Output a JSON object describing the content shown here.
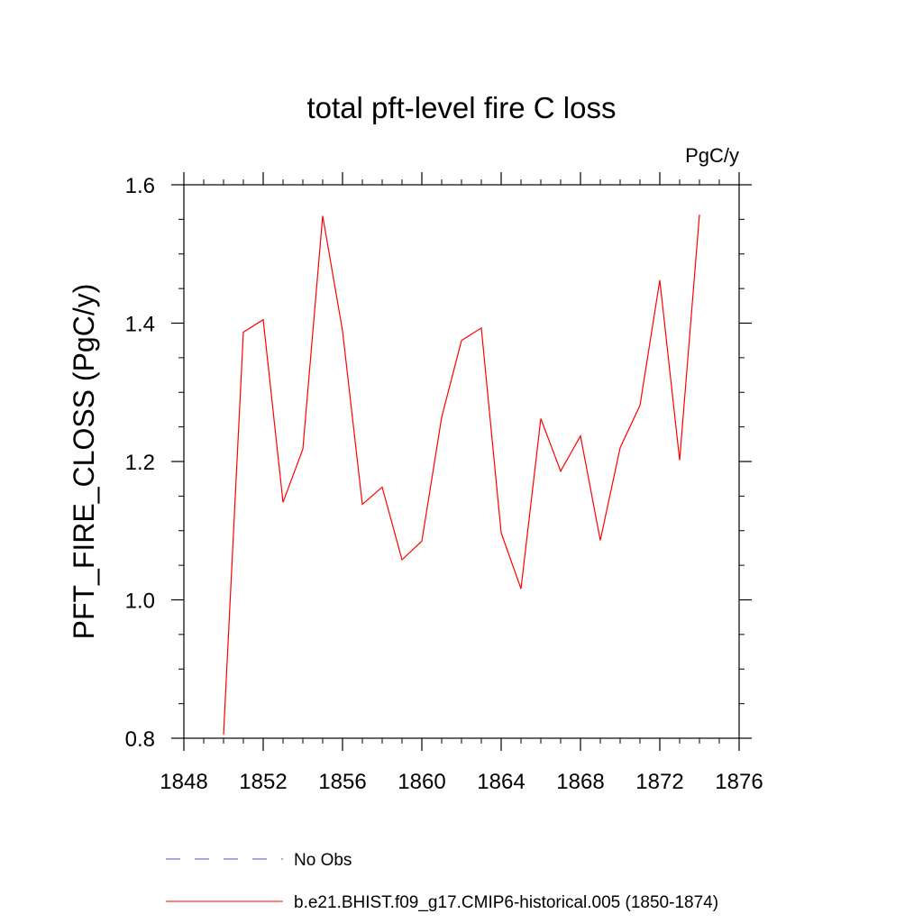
{
  "chart_data": {
    "type": "line",
    "title": "total pft-level fire C loss",
    "units_label": "PgC/y",
    "xlabel": "",
    "ylabel": "PFT_FIRE_CLOSS  (PgC/y)",
    "xlim": [
      1848,
      1876
    ],
    "ylim": [
      0.8,
      1.6
    ],
    "x_ticks": [
      1848,
      1852,
      1856,
      1860,
      1864,
      1868,
      1872,
      1876
    ],
    "x_tick_labels": [
      "1848",
      "1852",
      "1856",
      "1860",
      "1864",
      "1868",
      "1872",
      "1876"
    ],
    "y_ticks": [
      0.8,
      1.0,
      1.2,
      1.4,
      1.6
    ],
    "y_tick_labels": [
      "0.8",
      "1.0",
      "1.2",
      "1.4",
      "1.6"
    ],
    "grid": false,
    "legend_position": "bottom",
    "series": [
      {
        "name": "b.e21.BHIST.f09_g17.CMIP6-historical.005 (1850-1874)",
        "color": "#ff0000",
        "dash": "solid",
        "x": [
          1850,
          1851,
          1852,
          1853,
          1854,
          1855,
          1856,
          1857,
          1858,
          1859,
          1860,
          1861,
          1862,
          1863,
          1864,
          1865,
          1866,
          1867,
          1868,
          1869,
          1870,
          1871,
          1872,
          1873,
          1874
        ],
        "y": [
          0.805,
          1.387,
          1.405,
          1.141,
          1.218,
          1.555,
          1.389,
          1.138,
          1.163,
          1.058,
          1.085,
          1.264,
          1.375,
          1.393,
          1.097,
          1.016,
          1.262,
          1.186,
          1.237,
          1.086,
          1.22,
          1.281,
          1.462,
          1.202,
          1.557
        ]
      }
    ],
    "legend": [
      {
        "label": "No Obs",
        "color": "#5555aa",
        "dash": "dashed"
      },
      {
        "label": "b.e21.BHIST.f09_g17.CMIP6-historical.005 (1850-1874)",
        "color": "#ff0000",
        "dash": "solid"
      }
    ]
  }
}
